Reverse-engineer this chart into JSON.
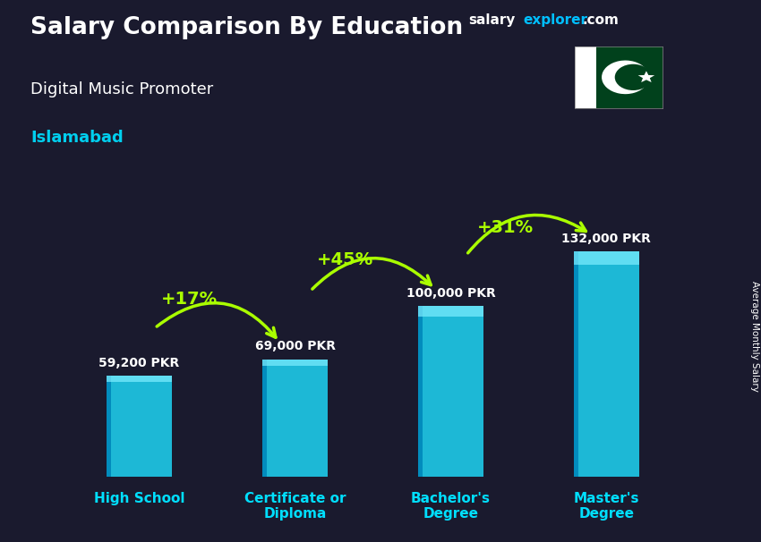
{
  "title": "Salary Comparison By Education",
  "subtitle": "Digital Music Promoter",
  "location": "Islamabad",
  "ylabel": "Average Monthly Salary",
  "categories": [
    "High School",
    "Certificate or\nDiploma",
    "Bachelor's\nDegree",
    "Master's\nDegree"
  ],
  "values": [
    59200,
    69000,
    100000,
    132000
  ],
  "labels": [
    "59,200 PKR",
    "69,000 PKR",
    "100,000 PKR",
    "132,000 PKR"
  ],
  "pct_changes": [
    "+17%",
    "+45%",
    "+31%"
  ],
  "bar_color_main": "#1ECFEF",
  "bar_color_light": "#7EEEFF",
  "bar_color_dark": "#0088BB",
  "background_color": "#1a1a2e",
  "title_color": "#ffffff",
  "subtitle_color": "#ffffff",
  "location_color": "#00CFEF",
  "label_color": "#ffffff",
  "pct_color": "#aaff00",
  "xlabel_color": "#00DFFF",
  "figsize": [
    8.5,
    6.06
  ],
  "dpi": 100,
  "ylim": [
    0,
    165000
  ],
  "bar_width": 0.42,
  "arrow_color": "#aaff00",
  "brand_color_salary": "#ffffff",
  "brand_color_explorer": "#00BFFF",
  "brand_color_com": "#ffffff",
  "flag_green": "#01411C",
  "flag_white": "#ffffff"
}
